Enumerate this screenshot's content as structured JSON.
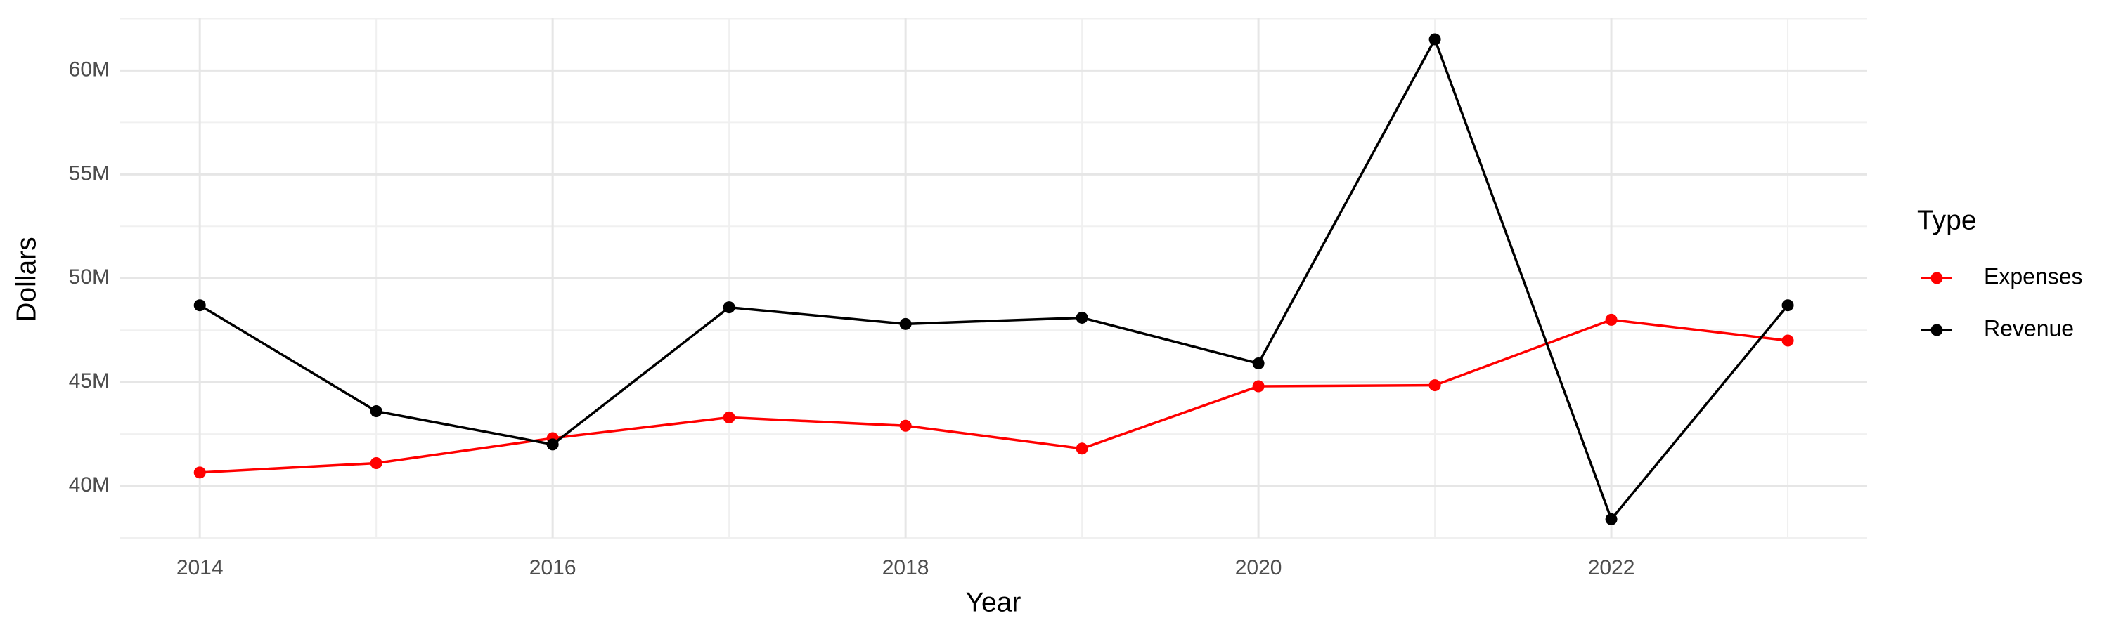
{
  "chart_data": {
    "type": "line",
    "x_label": "Year",
    "y_label": "Dollars",
    "legend_title": "Type",
    "x": [
      2014,
      2015,
      2016,
      2017,
      2018,
      2019,
      2020,
      2021,
      2022,
      2023
    ],
    "series": [
      {
        "name": "Expenses",
        "color": "#ff0000",
        "values": [
          40650000,
          41100000,
          42300000,
          43300000,
          42900000,
          41800000,
          44800000,
          44850000,
          48000000,
          47000000
        ]
      },
      {
        "name": "Revenue",
        "color": "#000000",
        "values": [
          48700000,
          43600000,
          42000000,
          48600000,
          47800000,
          48100000,
          45900000,
          61500000,
          38400000,
          48700000
        ]
      }
    ],
    "xlim": [
      2013.545,
      2023.45
    ],
    "ylim": [
      37500000,
      62550000
    ],
    "xticks": [
      2014,
      2016,
      2018,
      2020,
      2022
    ],
    "yticks": [
      {
        "value": 40000000,
        "label": "40M"
      },
      {
        "value": 45000000,
        "label": "45M"
      },
      {
        "value": 50000000,
        "label": "50M"
      },
      {
        "value": 55000000,
        "label": "55M"
      },
      {
        "value": 60000000,
        "label": "60M"
      }
    ],
    "grid": true,
    "legend": "right"
  }
}
